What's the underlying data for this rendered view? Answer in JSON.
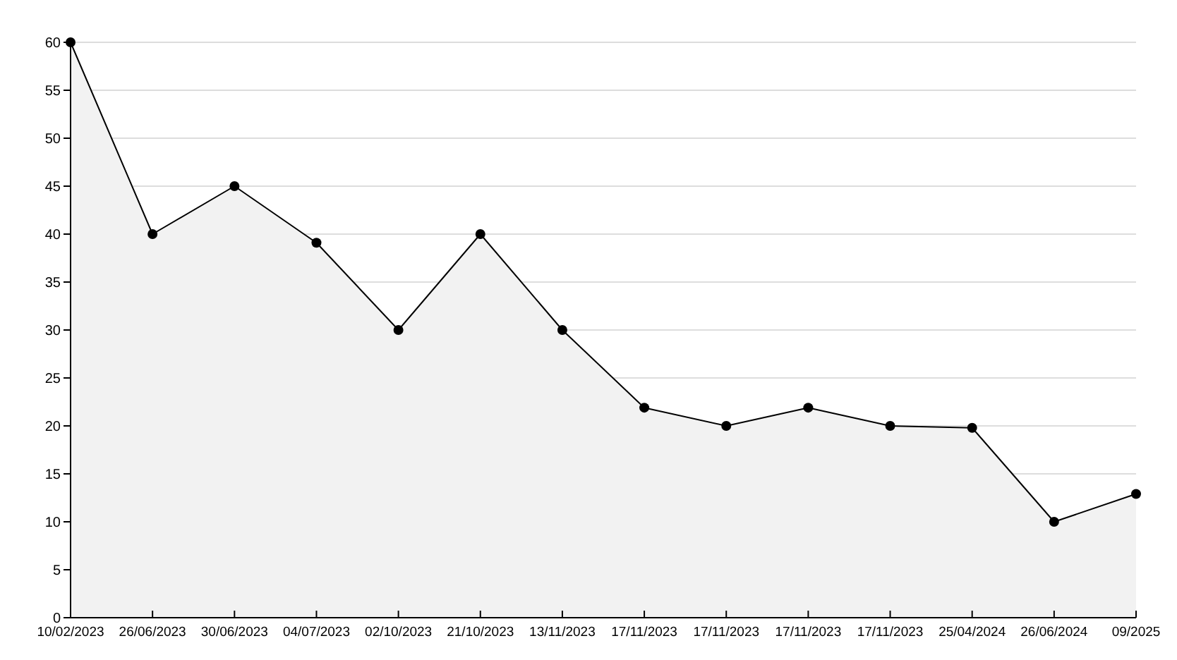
{
  "chart_data": {
    "type": "area",
    "categories": [
      "10/02/2023",
      "26/06/2023",
      "30/06/2023",
      "04/07/2023",
      "02/10/2023",
      "21/10/2023",
      "13/11/2023",
      "17/11/2023",
      "17/11/2023",
      "17/11/2023",
      "17/11/2023",
      "25/04/2024",
      "26/06/2024",
      "09/2025"
    ],
    "series": [
      {
        "color": "#000000",
        "values": [
          60,
          40,
          45,
          39.1,
          30,
          40,
          30,
          21.9,
          20,
          21.9,
          20,
          19.8,
          10,
          12.9
        ]
      }
    ],
    "ylim": [
      0,
      60
    ],
    "yticks": [
      0,
      5,
      10,
      15,
      20,
      25,
      30,
      35,
      40,
      45,
      50,
      55,
      60
    ],
    "grid": "y",
    "marker": "circle",
    "line_style": "solid"
  }
}
